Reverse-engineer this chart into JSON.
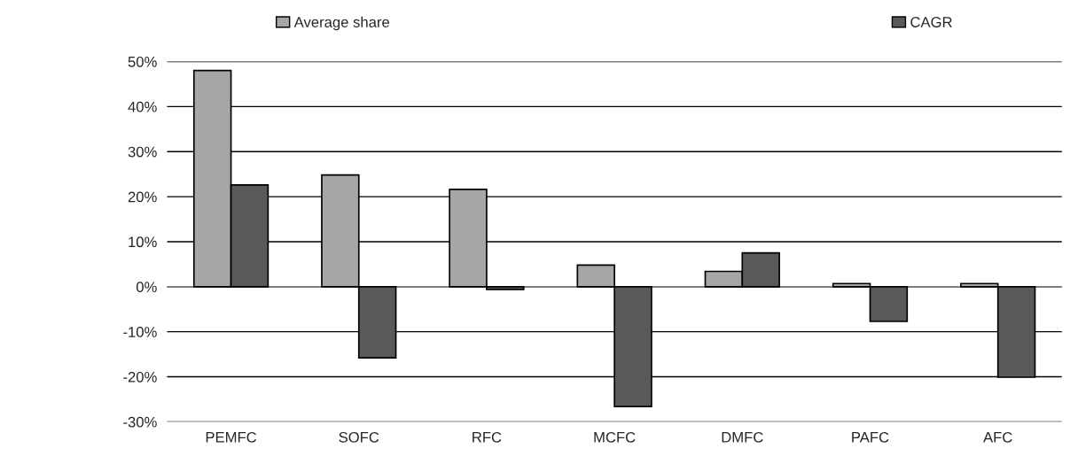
{
  "chart_data": {
    "type": "bar",
    "categories": [
      "PEMFC",
      "SOFC",
      "RFC",
      "MCFC",
      "DMFC",
      "PAFC",
      "AFC"
    ],
    "series": [
      {
        "name": "Average share",
        "color": "#a6a6a6",
        "values": [
          48.0,
          24.8,
          21.6,
          4.8,
          3.4,
          0.7,
          0.7
        ]
      },
      {
        "name": "CAGR",
        "color": "#595959",
        "values": [
          22.6,
          -15.8,
          -0.6,
          -26.6,
          7.5,
          -7.7,
          -20.1
        ]
      }
    ],
    "ylim": [
      -30,
      50
    ],
    "yticks": [
      {
        "value": -30,
        "label": "-30%"
      },
      {
        "value": -20,
        "label": "-20%"
      },
      {
        "value": -10,
        "label": "-10%"
      },
      {
        "value": 0,
        "label": "0%"
      },
      {
        "value": 10,
        "label": "10%"
      },
      {
        "value": 20,
        "label": "20%"
      },
      {
        "value": 30,
        "label": "30%"
      },
      {
        "value": 40,
        "label": "40%"
      },
      {
        "value": 50,
        "label": "50%"
      }
    ],
    "grid": "y",
    "legend": "top"
  }
}
